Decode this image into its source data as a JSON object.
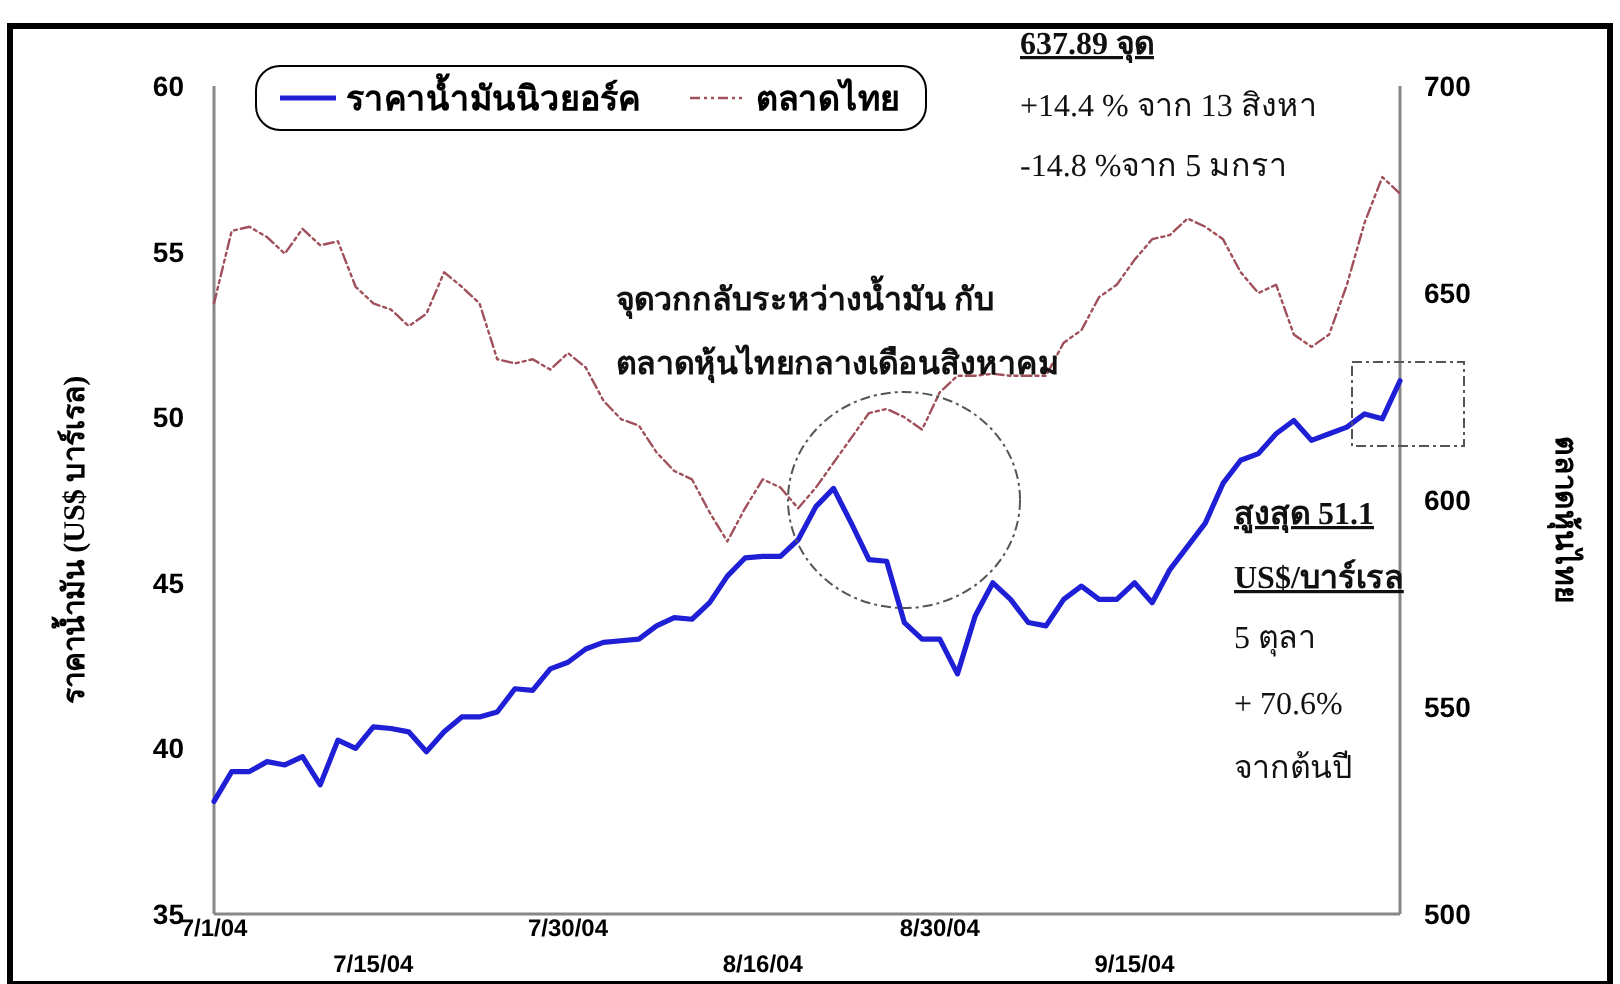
{
  "chart_data": {
    "type": "line",
    "categories": [
      "7/1/04",
      null,
      null,
      null,
      null,
      null,
      null,
      null,
      null,
      "7/15/04",
      null,
      null,
      null,
      null,
      null,
      null,
      null,
      null,
      null,
      null,
      "7/30/04",
      null,
      null,
      null,
      null,
      null,
      null,
      null,
      null,
      null,
      null,
      "8/16/04",
      null,
      null,
      null,
      null,
      null,
      null,
      null,
      null,
      null,
      "8/30/04",
      null,
      null,
      null,
      null,
      null,
      null,
      null,
      null,
      null,
      null,
      "9/15/04",
      null,
      null,
      null,
      null,
      null,
      null,
      null,
      null,
      null,
      null,
      null,
      null,
      null,
      null,
      null
    ],
    "ylim": [
      35,
      60
    ],
    "yticks": [
      35,
      40,
      45,
      50,
      55,
      60
    ],
    "y2lim": [
      500,
      700
    ],
    "y2ticks": [
      500,
      550,
      600,
      650,
      700
    ],
    "ylabel": "ราคาน้ำมัน (US$ บาร์เรล)",
    "y2label": "ตลาดหุ้นไทย",
    "legend": "top left",
    "grid": false,
    "marker": "none",
    "annotations": [
      "637.89 จุด",
      "+14.4 % จาก 13 สิงหา",
      "-14.8 %จาก 5 มกรา",
      "จุดวกกลับระหว่างน้ำมัน กับ",
      "ตลาดหุ้นไทยกลางเดือนสิงหาคม",
      "สูงสุด 51.1",
      "US$/บาร์เรล",
      "5 ตุลา",
      "+ 70.6%",
      "จากต้นปี"
    ],
    "series": [
      {
        "name": "ราคาน้ำมันนิวยอร์ค",
        "color": "#1f1fd6",
        "line_style": "solid",
        "values": [
          38.4,
          39.3,
          39.3,
          39.6,
          39.5,
          39.75,
          38.9,
          40.25,
          40.0,
          40.65,
          40.6,
          40.5,
          39.9,
          40.5,
          40.95,
          40.95,
          41.1,
          41.8,
          41.75,
          42.4,
          42.6,
          43.0,
          43.2,
          43.25,
          43.3,
          43.7,
          43.95,
          43.9,
          44.4,
          45.2,
          45.75,
          45.8,
          45.8,
          46.3,
          47.3,
          47.85,
          46.8,
          45.7,
          45.65,
          43.8,
          43.3,
          43.3,
          42.25,
          44.0,
          45.0,
          44.5,
          43.8,
          43.7,
          44.5,
          44.9,
          44.5,
          44.5,
          45.0,
          44.4,
          45.4,
          46.1,
          46.8,
          48.0,
          48.7,
          48.9,
          49.5,
          49.9,
          49.3,
          49.5,
          49.7,
          50.1,
          49.95,
          51.1
        ]
      },
      {
        "name": "ตลาดไทย",
        "color": "#a0505a",
        "line_style": "dashed",
        "axis": "y2",
        "values": [
          647.5,
          665,
          666,
          663.5,
          659.5,
          665.5,
          661.5,
          662.5,
          651.5,
          647.5,
          646,
          642,
          645,
          655,
          651.5,
          647.5,
          634,
          633,
          634,
          631.5,
          635.5,
          632,
          624,
          619.5,
          618,
          611.5,
          607,
          605,
          597,
          590,
          598,
          605,
          603,
          598,
          603,
          609,
          615,
          621,
          622,
          620,
          617,
          626,
          630,
          630,
          630.5,
          630,
          630,
          630,
          638,
          641,
          649,
          652,
          658,
          663,
          664,
          668,
          666,
          663,
          655,
          650,
          652,
          640,
          637,
          640,
          652,
          667,
          678,
          674
        ]
      }
    ]
  }
}
